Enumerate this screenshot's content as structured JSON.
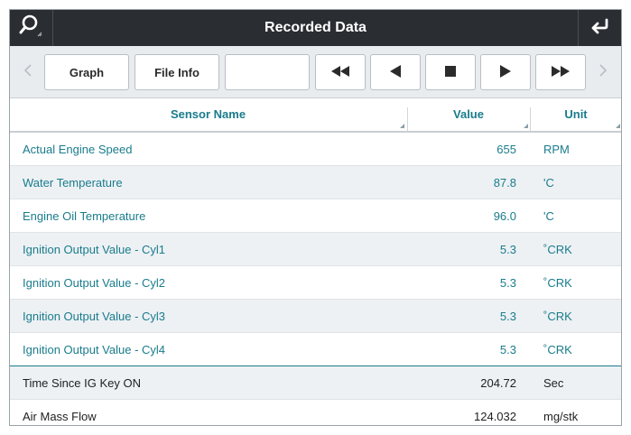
{
  "header": {
    "title": "Recorded Data",
    "left_icon": "search-icon",
    "right_icon": "back-return-icon"
  },
  "toolbar": {
    "graph_label": "Graph",
    "file_info_label": "File Info",
    "blank_label": "",
    "media_icons": [
      "fast-rewind-icon",
      "rewind-icon",
      "stop-icon",
      "play-icon",
      "fast-forward-icon"
    ]
  },
  "table": {
    "columns": {
      "name": "Sensor Name",
      "value": "Value",
      "unit": "Unit"
    },
    "rows": [
      {
        "name": "Actual Engine Speed",
        "value": "655",
        "unit": "RPM",
        "kind": "sensor"
      },
      {
        "name": "Water Temperature",
        "value": "87.8",
        "unit": "'C",
        "kind": "sensor"
      },
      {
        "name": "Engine Oil Temperature",
        "value": "96.0",
        "unit": "'C",
        "kind": "sensor"
      },
      {
        "name": "Ignition Output Value - Cyl1",
        "value": "5.3",
        "unit": "˚CRK",
        "kind": "sensor"
      },
      {
        "name": "Ignition Output Value - Cyl2",
        "value": "5.3",
        "unit": "˚CRK",
        "kind": "sensor"
      },
      {
        "name": "Ignition Output Value - Cyl3",
        "value": "5.3",
        "unit": "˚CRK",
        "kind": "sensor"
      },
      {
        "name": "Ignition Output Value - Cyl4",
        "value": "5.3",
        "unit": "˚CRK",
        "kind": "sensor"
      },
      {
        "name": "Time Since IG Key ON",
        "value": "204.72",
        "unit": "Sec",
        "kind": "plain"
      },
      {
        "name": "Air Mass Flow",
        "value": "124.032",
        "unit": "mg/stk",
        "kind": "plain"
      }
    ]
  },
  "colors": {
    "accent": "#1a7c8c",
    "header_bg": "#2a2d32",
    "toolbar_bg": "#e9ecef",
    "alt_row_bg": "#edf1f4"
  }
}
